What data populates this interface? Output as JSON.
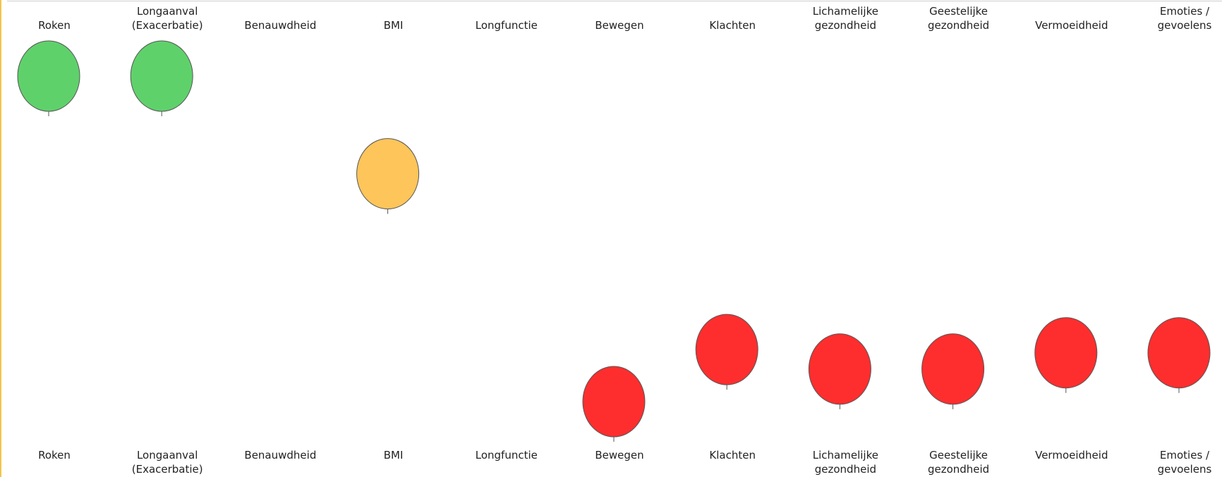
{
  "chart_data": {
    "type": "balloon",
    "categories": [
      "Roken",
      "Longaanval (Exacerbatie)",
      "Benauwdheid",
      "BMI",
      "Longfunctie",
      "Bewegen",
      "Klachten",
      "Lichamelijke gezondheid",
      "Geestelijke gezondheid",
      "Vermoeidheid",
      "Emoties / gevoelens"
    ],
    "values": [
      100,
      100,
      null,
      70,
      null,
      0,
      16,
      10,
      10,
      15,
      15
    ],
    "colors": [
      "#5fd16b",
      "#5fd16b",
      null,
      "#fdc55a",
      null,
      "#ff2e2e",
      "#ff2e2e",
      "#ff2e2e",
      "#ff2e2e",
      "#ff2e2e",
      "#ff2e2e"
    ],
    "ylim": [
      0,
      100
    ]
  }
}
